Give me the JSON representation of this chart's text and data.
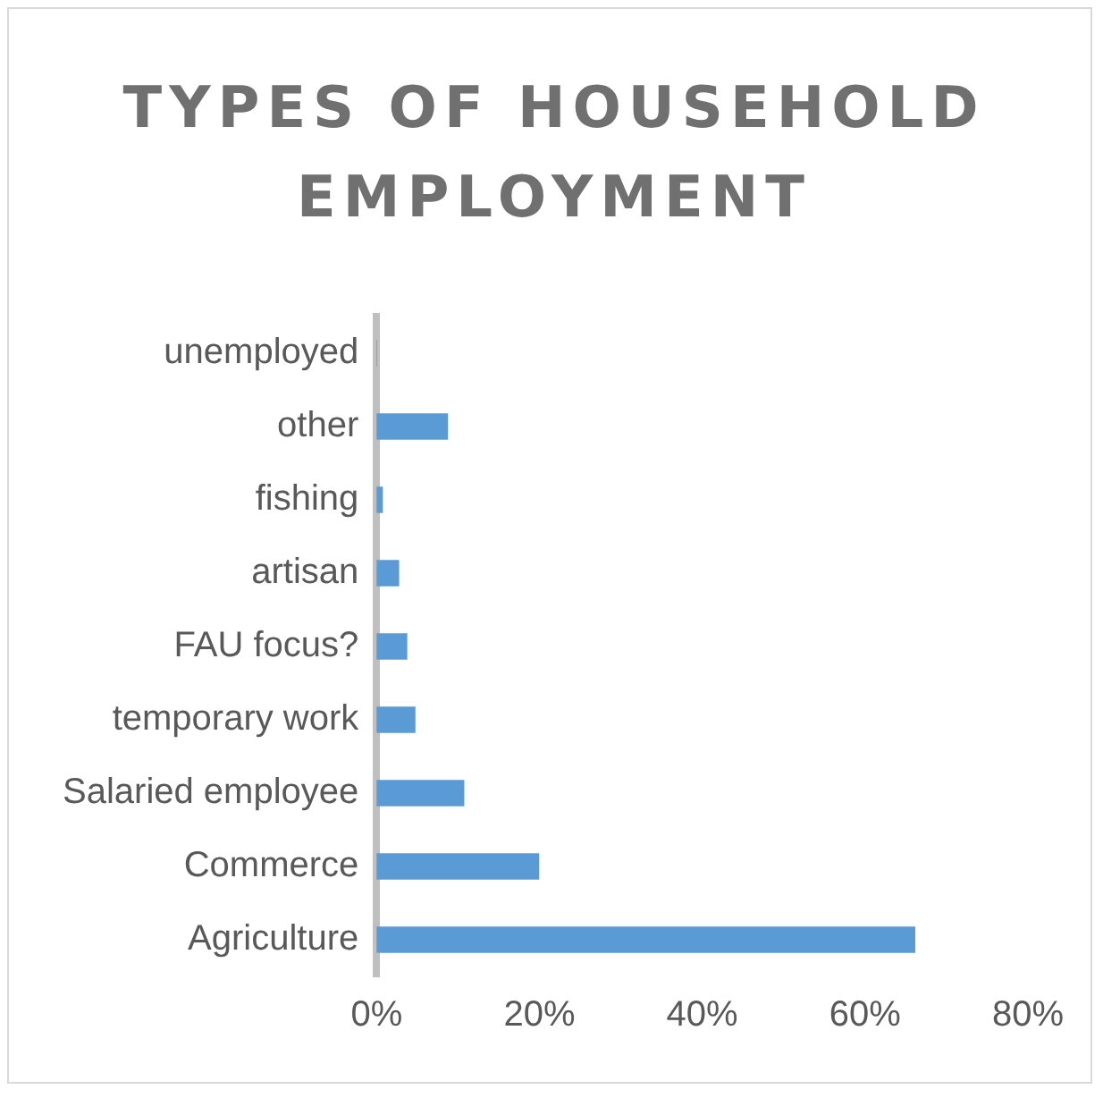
{
  "chart_data": {
    "type": "bar",
    "orientation": "horizontal",
    "title": "TYPES OF HOUSEHOLD EMPLOYMENT",
    "categories": [
      "unemployed",
      "other",
      "fishing",
      "artisan",
      "FAU focus?",
      "temporary work",
      "Salaried employee",
      "Commerce",
      "Agriculture"
    ],
    "values": [
      0,
      8.7,
      0.7,
      2.7,
      3.7,
      4.7,
      10.7,
      19.9,
      66.1
    ],
    "color": "#5b9bd5",
    "xlim": [
      0,
      80
    ],
    "xticks": [
      {
        "value": 0,
        "label": "0%"
      },
      {
        "value": 20,
        "label": "20%"
      },
      {
        "value": 40,
        "label": "40%"
      },
      {
        "value": 60,
        "label": "60%"
      },
      {
        "value": 80,
        "label": "80%"
      }
    ],
    "grid": false,
    "legend": false
  }
}
